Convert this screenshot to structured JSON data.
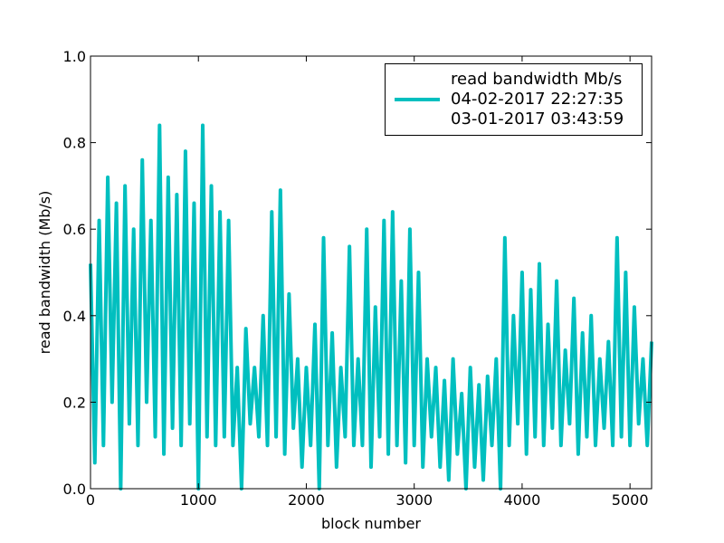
{
  "chart_data": {
    "type": "line",
    "xlabel": "block number",
    "ylabel": "read bandwidth (Mb/s)",
    "x": [
      0,
      40,
      80,
      120,
      160,
      200,
      240,
      280,
      320,
      360,
      400,
      440,
      480,
      520,
      560,
      600,
      640,
      680,
      720,
      760,
      800,
      840,
      880,
      920,
      960,
      1000,
      1040,
      1080,
      1120,
      1160,
      1200,
      1240,
      1280,
      1320,
      1360,
      1400,
      1440,
      1480,
      1520,
      1560,
      1600,
      1640,
      1680,
      1720,
      1760,
      1800,
      1840,
      1880,
      1920,
      1960,
      2000,
      2040,
      2080,
      2120,
      2160,
      2200,
      2240,
      2280,
      2320,
      2360,
      2400,
      2440,
      2480,
      2520,
      2560,
      2600,
      2640,
      2680,
      2720,
      2760,
      2800,
      2840,
      2880,
      2920,
      2960,
      3000,
      3040,
      3080,
      3120,
      3160,
      3200,
      3240,
      3280,
      3320,
      3360,
      3400,
      3440,
      3480,
      3520,
      3560,
      3600,
      3640,
      3680,
      3720,
      3760,
      3800,
      3840,
      3880,
      3920,
      3960,
      4000,
      4040,
      4080,
      4120,
      4160,
      4200,
      4240,
      4280,
      4320,
      4360,
      4400,
      4440,
      4480,
      4520,
      4560,
      4600,
      4640,
      4680,
      4720,
      4760,
      4800,
      4840,
      4880,
      4920,
      4960,
      5000,
      5040,
      5080,
      5120,
      5160,
      5200
    ],
    "series": [
      {
        "name": "read bandwidth Mb/s\n04-02-2017 22:27:35\n03-01-2017 03:43:59",
        "color": "#00bfbf",
        "values": [
          0.52,
          0.06,
          0.62,
          0.1,
          0.72,
          0.2,
          0.66,
          0.0,
          0.7,
          0.15,
          0.6,
          0.1,
          0.76,
          0.2,
          0.62,
          0.12,
          0.84,
          0.08,
          0.72,
          0.14,
          0.68,
          0.1,
          0.78,
          0.15,
          0.66,
          0.0,
          0.84,
          0.12,
          0.7,
          0.1,
          0.64,
          0.12,
          0.62,
          0.1,
          0.28,
          0.0,
          0.37,
          0.15,
          0.28,
          0.12,
          0.4,
          0.1,
          0.64,
          0.12,
          0.69,
          0.08,
          0.45,
          0.14,
          0.3,
          0.05,
          0.28,
          0.1,
          0.38,
          0.0,
          0.58,
          0.1,
          0.36,
          0.05,
          0.28,
          0.12,
          0.56,
          0.1,
          0.3,
          0.1,
          0.6,
          0.05,
          0.42,
          0.12,
          0.62,
          0.08,
          0.64,
          0.1,
          0.48,
          0.06,
          0.6,
          0.1,
          0.5,
          0.05,
          0.3,
          0.12,
          0.28,
          0.05,
          0.25,
          0.02,
          0.3,
          0.08,
          0.22,
          0.0,
          0.28,
          0.05,
          0.24,
          0.02,
          0.26,
          0.1,
          0.3,
          0.0,
          0.58,
          0.1,
          0.4,
          0.15,
          0.5,
          0.08,
          0.46,
          0.12,
          0.52,
          0.1,
          0.38,
          0.14,
          0.48,
          0.1,
          0.32,
          0.15,
          0.44,
          0.08,
          0.36,
          0.12,
          0.4,
          0.1,
          0.3,
          0.14,
          0.34,
          0.1,
          0.58,
          0.12,
          0.5,
          0.1,
          0.42,
          0.15,
          0.3,
          0.1,
          0.34
        ]
      }
    ],
    "xlim": [
      0,
      5200
    ],
    "xticks": [
      0,
      1000,
      2000,
      3000,
      4000,
      5000
    ],
    "ylim": [
      0,
      1
    ],
    "yticks": [
      {
        "value": 0,
        "label": "0.0"
      },
      0.2,
      0.4,
      0.6,
      0.8,
      {
        "value": 1,
        "label": "1.0"
      }
    ],
    "grid": false,
    "legend": "upper right"
  }
}
